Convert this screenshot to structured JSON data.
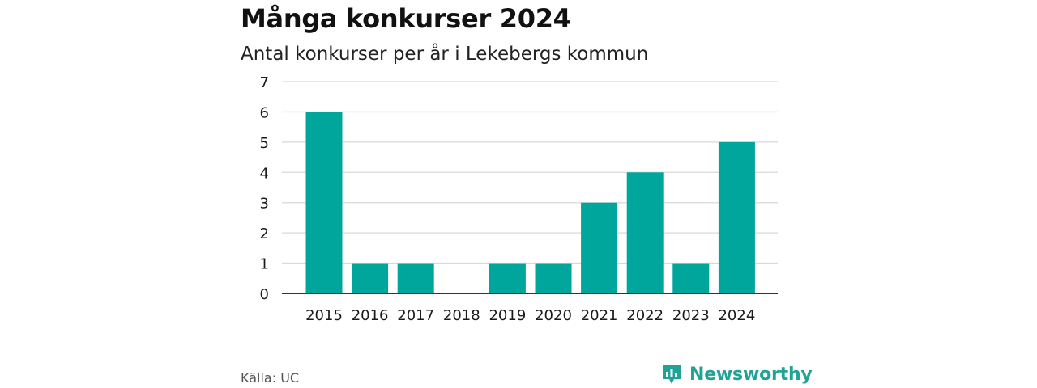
{
  "title": "Många konkurser 2024",
  "subtitle": "Antal konkurser per år i Lekebergs kommun",
  "source": "Källa: UC",
  "brand": {
    "name": "Newsworthy",
    "icon": "newsworthy-logo-icon"
  },
  "colors": {
    "bar": "#00a59b",
    "grid": "#d9d9d9",
    "axis": "#333333",
    "brand": "#21a296"
  },
  "chart_data": {
    "type": "bar",
    "categories": [
      "2015",
      "2016",
      "2017",
      "2018",
      "2019",
      "2020",
      "2021",
      "2022",
      "2023",
      "2024"
    ],
    "values": [
      6,
      1,
      1,
      0,
      1,
      1,
      3,
      4,
      1,
      5
    ],
    "title": "Många konkurser 2024",
    "subtitle": "Antal konkurser per år i Lekebergs kommun",
    "xlabel": "",
    "ylabel": "",
    "ylim": [
      0,
      7
    ],
    "yticks": [
      0,
      1,
      2,
      3,
      4,
      5,
      6,
      7
    ],
    "grid": true,
    "legend": "none"
  }
}
